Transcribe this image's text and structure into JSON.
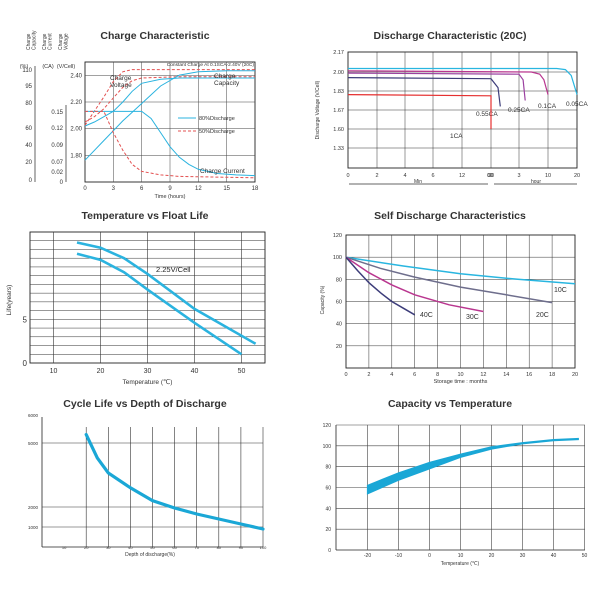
{
  "chart_data": [
    {
      "id": "charge",
      "type": "line",
      "title": "Charge Characteristic",
      "subtitle": "Constant Charge At 0.1SCA-2.40V  (20C)",
      "axis_headers": [
        "Charge Capacity",
        "Charge Current",
        "Charge Voltage"
      ],
      "axis_units": [
        "(%)",
        "(CA)",
        "(V/Cell)"
      ],
      "xlabel": "Time (hours)",
      "x_ticks": [
        "0",
        "3",
        "6",
        "9",
        "12",
        "15",
        "18"
      ],
      "xlim": [
        0,
        18
      ],
      "capacity_ticks": [
        "110",
        "95",
        "80",
        "60",
        "40",
        "20",
        "0"
      ],
      "current_ticks": [
        "0.15",
        "0.12",
        "0.09",
        "0.07",
        "0.02",
        "0"
      ],
      "voltage_ticks": [
        "2.40",
        "2.20",
        "2.00",
        "1.80"
      ],
      "legend": [
        "80%Discharge",
        "50%Discharge"
      ],
      "annotations": [
        "Charge Voltage",
        "Charge Capacity",
        "Charge Current"
      ],
      "series": [
        {
          "name": "80%Discharge",
          "quantity": "Charge Voltage",
          "x": [
            0,
            1,
            2,
            3,
            4,
            5,
            6,
            8,
            10,
            14,
            18
          ],
          "y": [
            2.02,
            2.05,
            2.09,
            2.13,
            2.2,
            2.28,
            2.34,
            2.37,
            2.38,
            2.38,
            2.38
          ]
        },
        {
          "name": "50%Discharge",
          "quantity": "Charge Voltage",
          "x": [
            0,
            1,
            2,
            3,
            4,
            5,
            6,
            10,
            18
          ],
          "y": [
            2.05,
            2.09,
            2.15,
            2.23,
            2.31,
            2.36,
            2.38,
            2.39,
            2.39
          ]
        },
        {
          "name": "80%Discharge",
          "quantity": "Charge Capacity",
          "x": [
            0,
            2,
            4,
            6,
            8,
            10,
            12,
            15,
            18
          ],
          "y": [
            20,
            38,
            56,
            72,
            88,
            98,
            101,
            102,
            102
          ]
        },
        {
          "name": "50%Discharge",
          "quantity": "Charge Capacity",
          "x": [
            0,
            1,
            2,
            3,
            4,
            5,
            6,
            9,
            18
          ],
          "y": [
            52,
            65,
            78,
            92,
            101,
            103,
            103,
            103,
            103
          ]
        },
        {
          "name": "80%Discharge",
          "quantity": "Charge Current",
          "x": [
            0,
            6,
            7,
            8,
            9,
            10,
            11,
            12,
            14,
            16,
            18
          ],
          "y": [
            0.1,
            0.1,
            0.09,
            0.07,
            0.05,
            0.035,
            0.025,
            0.018,
            0.012,
            0.01,
            0.009
          ]
        },
        {
          "name": "50%Discharge",
          "quantity": "Charge Current",
          "x": [
            0,
            2,
            3,
            4,
            5,
            6,
            8,
            10,
            14,
            18
          ],
          "y": [
            0.1,
            0.1,
            0.07,
            0.045,
            0.025,
            0.015,
            0.01,
            0.008,
            0.007,
            0.006
          ]
        }
      ]
    },
    {
      "id": "discharge",
      "type": "line",
      "title": "Discharge Characteristic (20C)",
      "ylabel": "Discharge Voltage (V/Cell)",
      "y_ticks": [
        "2.17",
        "2.00",
        "1.83",
        "1.67",
        "1.60",
        "1.33"
      ],
      "x_ticks_min": [
        "0",
        "2",
        "4",
        "6",
        "12",
        "30",
        "60"
      ],
      "x_ticks_hour": [
        "3",
        "10",
        "20"
      ],
      "x_unit_min": "Min",
      "x_unit_hour": "hour",
      "series": [
        {
          "name": "0.05CA",
          "color": "#29b6e0",
          "x": [
            "0 min",
            "10 h",
            "13 h",
            "16 h",
            "18 h",
            "20 h"
          ],
          "y": [
            2.03,
            2.03,
            2.03,
            2.02,
            1.97,
            1.8
          ]
        },
        {
          "name": "0.1CA",
          "color": "#b9368f",
          "x": [
            "0 min",
            "6 h",
            "8 h",
            "9 h",
            "10 h"
          ],
          "y": [
            2.01,
            2.0,
            1.98,
            1.93,
            1.8
          ]
        },
        {
          "name": "0.25CA",
          "color": "#9b40a0",
          "x": [
            "0 min",
            "3 h",
            "4 h",
            "4.5 h"
          ],
          "y": [
            1.99,
            1.98,
            1.93,
            1.75
          ]
        },
        {
          "name": "0.55CA",
          "color": "#3d3d7a",
          "x": [
            "0 min",
            "60 min",
            "90 min",
            "100 min"
          ],
          "y": [
            1.95,
            1.94,
            1.86,
            1.7
          ]
        },
        {
          "name": "1CA",
          "color": "#e53030",
          "x": [
            "0 min",
            "30 min",
            "40 min",
            "45 min"
          ],
          "y": [
            1.8,
            1.79,
            1.72,
            1.6
          ]
        }
      ]
    },
    {
      "id": "float",
      "type": "line",
      "title": "Temperature vs Float Life",
      "ylabel": "Life(years)",
      "xlabel": "Temperature (℃)",
      "x_ticks": [
        "10",
        "20",
        "30",
        "40",
        "50"
      ],
      "xlim": [
        5,
        55
      ],
      "y_ticks": [
        "0",
        "5"
      ],
      "ylim": [
        0,
        15
      ],
      "annotation": "2.25V/Cell",
      "series": [
        {
          "name": "upper",
          "x": [
            15,
            20,
            25,
            30,
            40,
            53
          ],
          "y": [
            13.8,
            13.2,
            12.0,
            10.2,
            6.2,
            2.2
          ]
        },
        {
          "name": "lower",
          "x": [
            15,
            20,
            25,
            30,
            40,
            50
          ],
          "y": [
            12.5,
            11.8,
            10.4,
            8.4,
            4.6,
            1.0
          ]
        }
      ]
    },
    {
      "id": "self",
      "type": "line",
      "title": "Self Discharge Characteristics",
      "ylabel": "Capacity (%)",
      "xlabel": "Storage time : months",
      "x_ticks": [
        "0",
        "2",
        "4",
        "6",
        "8",
        "10",
        "12",
        "14",
        "16",
        "18",
        "20"
      ],
      "xlim": [
        0,
        20
      ],
      "y_ticks": [
        "120",
        "100",
        "80",
        "60",
        "40",
        "20"
      ],
      "ylim": [
        0,
        120
      ],
      "series": [
        {
          "name": "10C",
          "color": "#29b6e0",
          "x": [
            0,
            5,
            10,
            15,
            20
          ],
          "y": [
            100,
            92,
            85,
            80,
            76
          ]
        },
        {
          "name": "20C",
          "color": "#6e6e8c",
          "x": [
            0,
            3,
            6,
            10,
            14,
            18
          ],
          "y": [
            100,
            90,
            82,
            73,
            66,
            59
          ]
        },
        {
          "name": "30C",
          "color": "#b9368f",
          "x": [
            0,
            2,
            4,
            6,
            9,
            12
          ],
          "y": [
            100,
            86,
            75,
            66,
            57,
            51
          ]
        },
        {
          "name": "40C",
          "color": "#3d3d7a",
          "x": [
            0,
            1,
            2,
            3,
            4,
            5,
            6
          ],
          "y": [
            100,
            88,
            77,
            68,
            60,
            54,
            48
          ]
        }
      ]
    },
    {
      "id": "cycle",
      "type": "line",
      "title": "Cycle Life vs Depth of Discharge",
      "xlabel": "Depth of discharge(%)",
      "x_ticks": [
        "10",
        "20",
        "30",
        "40",
        "50",
        "60",
        "70",
        "80",
        "90",
        "100"
      ],
      "xlim": [
        0,
        100
      ],
      "y_ticks": [
        "6000",
        "5000",
        "2000",
        "1000"
      ],
      "y_values": [
        6000,
        5000,
        2000,
        1000
      ],
      "series": [
        {
          "name": "cycle life",
          "x": [
            20,
            25,
            30,
            40,
            50,
            60,
            70,
            80,
            90,
            100
          ],
          "y": [
            5300,
            4300,
            3600,
            2900,
            2300,
            1950,
            1650,
            1400,
            1150,
            900
          ]
        }
      ]
    },
    {
      "id": "captemp",
      "type": "area",
      "title": "Capacity vs Temperature",
      "xlabel": "Temperature (℃)",
      "x_ticks": [
        "-20",
        "-10",
        "0",
        "10",
        "20",
        "30",
        "40",
        "50"
      ],
      "xlim": [
        -25,
        55
      ],
      "y_ticks": [
        "120",
        "100",
        "80",
        "60",
        "40",
        "20",
        "0"
      ],
      "ylim": [
        0,
        120
      ],
      "series": [
        {
          "name": "upper",
          "x": [
            -20,
            -10,
            0,
            10,
            20,
            30,
            40,
            48
          ],
          "y": [
            62,
            74,
            84,
            92,
            99,
            103,
            106,
            107
          ]
        },
        {
          "name": "lower",
          "x": [
            -20,
            -10,
            0,
            10,
            20,
            30,
            40,
            48
          ],
          "y": [
            54,
            67,
            78,
            89,
            97,
            102,
            105,
            106
          ]
        }
      ]
    }
  ]
}
